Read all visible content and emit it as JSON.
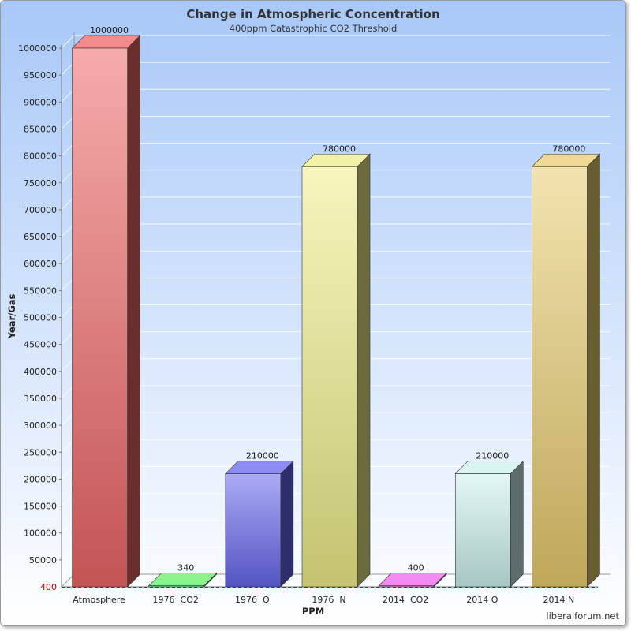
{
  "chart_data": {
    "type": "bar",
    "title": "Change in Atmospheric Concentration",
    "subtitle": "400ppm Catastrophic CO2 Threshold",
    "xlabel": "PPM",
    "ylabel": "Year/Gas",
    "ylim": [
      0,
      1000000
    ],
    "yticks": [
      50000,
      100000,
      150000,
      200000,
      250000,
      300000,
      350000,
      400000,
      450000,
      500000,
      550000,
      600000,
      650000,
      700000,
      750000,
      800000,
      850000,
      900000,
      950000,
      1000000
    ],
    "threshold": {
      "label": "400",
      "value": 400,
      "color": "#cc0000"
    },
    "categories": [
      "Atmosphere",
      "1976  CO2",
      "1976  O",
      "1976  N",
      "2014  CO2",
      "2014 O",
      "2014 N"
    ],
    "values": [
      1000000,
      340,
      210000,
      780000,
      400,
      210000,
      780000
    ],
    "data_labels": [
      "1000000",
      "340",
      "210000",
      "780000",
      "400",
      "210000",
      "780000"
    ],
    "colors": [
      "#ee6666",
      "#66ee66",
      "#6666ee",
      "#eeee88",
      "#ee66ee",
      "#ccf2ee",
      "#e8cc6e"
    ],
    "grid": true,
    "legend": "none",
    "background": [
      "#ffffff",
      "#a8c8f8"
    ]
  },
  "watermark": "liberalforum.net"
}
